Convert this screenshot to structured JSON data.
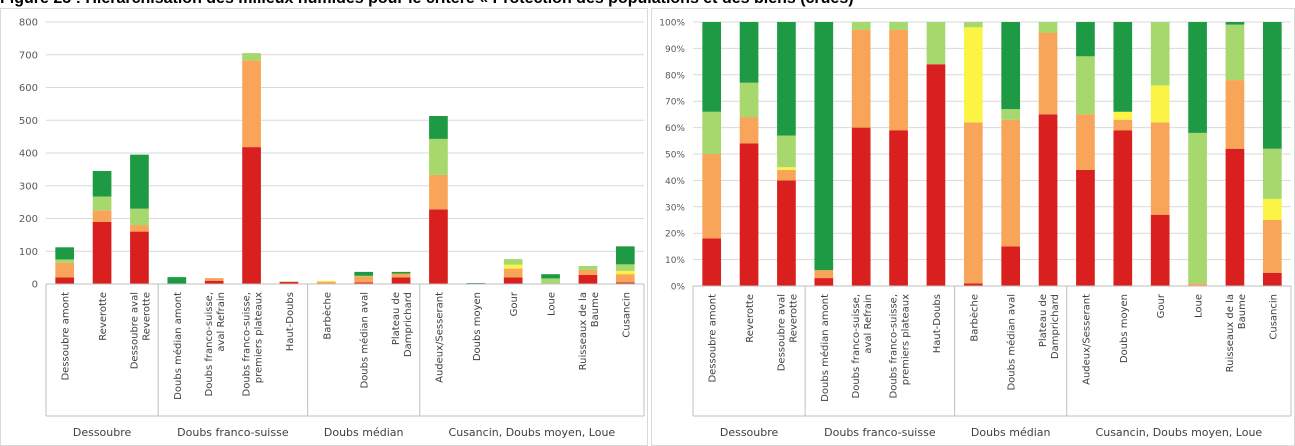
{
  "figure_title": "Figure 25 : Hiérarchisation des milieux humides pour le critère « Protection des populations et des biens (crues)",
  "colors": {
    "red": "#d9201f",
    "orange": "#f8a55a",
    "yellow": "#fbf444",
    "lightgreen": "#a6d86e",
    "green": "#1f9a44"
  },
  "chart_data": [
    {
      "type": "bar",
      "stacked": true,
      "categories": [
        "Dessoubre amont",
        "Reverotte",
        "Dessoubre aval Reverotte",
        "Doubs médian amont",
        "Doubs franco-suisse, aval Refrain",
        "Doubs franco-suisse, premiers plateaux",
        "Haut-Doubs",
        "Barbèche",
        "Doubs médian aval",
        "Plateau de Damprichard",
        "Audeux/Sesserant",
        "Doubs moyen",
        "Gour",
        "Loue",
        "Ruisseaux de la Baume",
        "Cusancin"
      ],
      "groups": [
        {
          "label": "Dessoubre",
          "count": 3
        },
        {
          "label": "Doubs franco-suisse",
          "count": 4
        },
        {
          "label": "Doubs médian",
          "count": 3
        },
        {
          "label": "Cusancin, Doubs moyen, Loue",
          "count": 6
        }
      ],
      "series": [
        {
          "color": "#d9201f",
          "values": [
            20,
            190,
            160,
            0,
            10,
            418,
            6,
            0,
            5,
            20,
            228,
            0,
            20,
            2,
            28,
            5
          ]
        },
        {
          "color": "#f8a55a",
          "values": [
            45,
            35,
            20,
            1,
            8,
            265,
            1,
            7,
            18,
            12,
            105,
            0,
            27,
            0,
            15,
            25
          ]
        },
        {
          "color": "#fbf444",
          "values": [
            0,
            0,
            0,
            0,
            0,
            0,
            0,
            3,
            0,
            0,
            0,
            0,
            12,
            0,
            0,
            10
          ]
        },
        {
          "color": "#a6d86e",
          "values": [
            10,
            42,
            50,
            0,
            0,
            22,
            1,
            0,
            2,
            0,
            110,
            0,
            17,
            15,
            12,
            20
          ]
        },
        {
          "color": "#1f9a44",
          "values": [
            37,
            78,
            165,
            20,
            0,
            0,
            0,
            0,
            12,
            5,
            70,
            3,
            0,
            13,
            0,
            55
          ]
        }
      ],
      "ylim": [
        0,
        800
      ],
      "yticks": [
        "0",
        "100",
        "200",
        "300",
        "400",
        "500",
        "600",
        "700",
        "800"
      ],
      "grid": true
    },
    {
      "type": "bar",
      "stacked": true,
      "percent": true,
      "categories": [
        "Dessoubre amont",
        "Reverotte",
        "Dessoubre aval Reverotte",
        "Doubs médian amont",
        "Doubs franco-suisse, aval Refrain",
        "Doubs franco-suisse, premiers plateaux",
        "Haut-Doubs",
        "Barbèche",
        "Doubs médian aval",
        "Plateau de Damprichard",
        "Audeux/Sesserant",
        "Doubs moyen",
        "Gour",
        "Loue",
        "Ruisseaux de la Baume",
        "Cusancin"
      ],
      "groups": [
        {
          "label": "Dessoubre",
          "count": 3
        },
        {
          "label": "Doubs franco-suisse",
          "count": 4
        },
        {
          "label": "Doubs médian",
          "count": 3
        },
        {
          "label": "Cusancin, Doubs moyen, Loue",
          "count": 6
        }
      ],
      "series": [
        {
          "color": "#d9201f",
          "values": [
            18,
            54,
            40,
            3,
            60,
            59,
            84,
            1,
            15,
            65,
            44,
            59,
            27,
            0,
            52,
            5
          ]
        },
        {
          "color": "#f8a55a",
          "values": [
            32,
            10,
            4,
            3,
            37,
            38,
            0,
            61,
            48,
            31,
            21,
            4,
            35,
            1,
            26,
            20
          ]
        },
        {
          "color": "#fbf444",
          "values": [
            0,
            0,
            1,
            0,
            0,
            0,
            0,
            36,
            0,
            0,
            0,
            3,
            14,
            0,
            0,
            8
          ]
        },
        {
          "color": "#a6d86e",
          "values": [
            16,
            13,
            12,
            0,
            3,
            3,
            16,
            2,
            4,
            4,
            22,
            0,
            24,
            57,
            21,
            19
          ]
        },
        {
          "color": "#1f9a44",
          "values": [
            34,
            23,
            43,
            94,
            0,
            0,
            0,
            0,
            33,
            0,
            13,
            34,
            0,
            42,
            1,
            48
          ]
        }
      ],
      "ylim": [
        0,
        100
      ],
      "yticks": [
        "0%",
        "10%",
        "20%",
        "30%",
        "40%",
        "50%",
        "60%",
        "70%",
        "80%",
        "90%",
        "100%"
      ],
      "grid": true
    }
  ]
}
